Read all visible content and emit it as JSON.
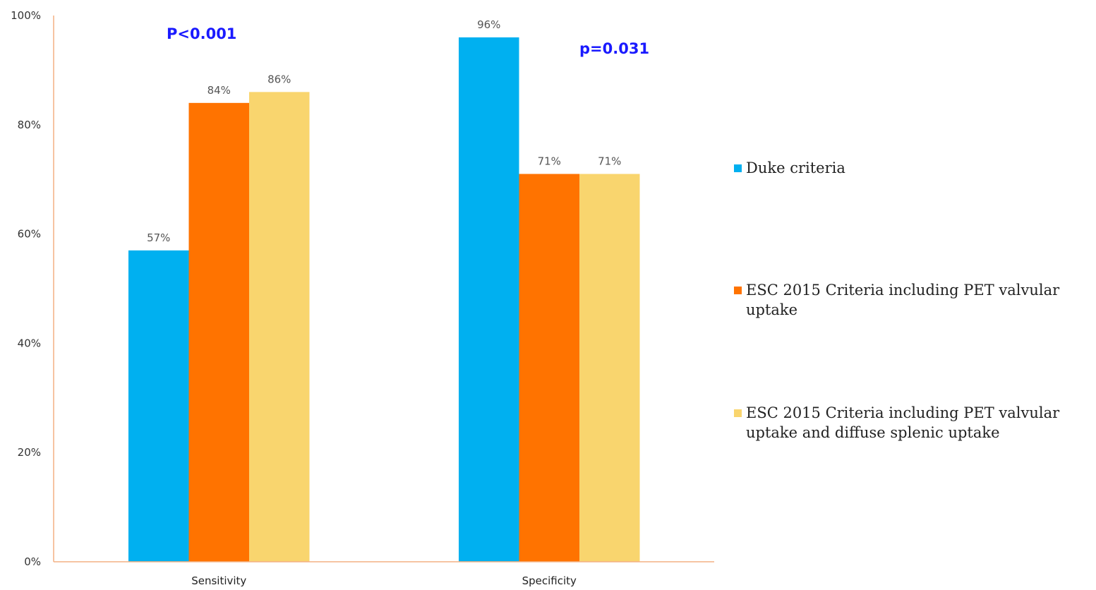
{
  "chart_data": {
    "type": "bar",
    "categories": [
      "Sensitivity",
      "Specificity"
    ],
    "series": [
      {
        "name": "Duke criteria",
        "color": "#00b0f0",
        "values": [
          57,
          96
        ],
        "labels": [
          "57%",
          "96%"
        ]
      },
      {
        "name": "ESC 2015 Criteria including PET valvular uptake",
        "color": "#ff7300",
        "values": [
          84,
          71
        ],
        "labels": [
          "84%",
          "71%"
        ]
      },
      {
        "name": "ESC 2015 Criteria including PET valvular uptake and diffuse splenic uptake",
        "color": "#f9d56e",
        "values": [
          86,
          71
        ],
        "labels": [
          "86%",
          "71%"
        ]
      }
    ],
    "ylim": [
      0,
      100
    ],
    "yticks": [
      "0%",
      "20%",
      "40%",
      "60%",
      "80%",
      "100%"
    ],
    "ytick_values": [
      0,
      20,
      40,
      60,
      80,
      100
    ],
    "annotations": [
      {
        "text": "P<0.001",
        "category": "Sensitivity"
      },
      {
        "text": "p=0.031",
        "category": "Specificity"
      }
    ],
    "axis_color": "#f4b183",
    "legend_position": "right",
    "grid": false
  }
}
